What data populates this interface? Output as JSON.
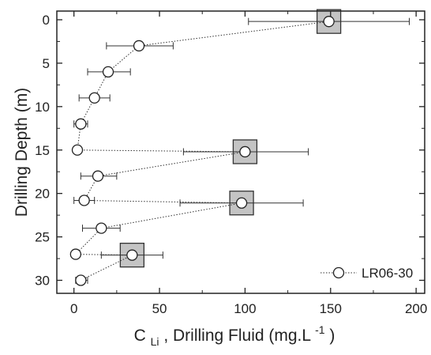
{
  "chart_data": {
    "type": "scatter",
    "xlabel": {
      "main": "C",
      "subscript": "Li",
      "rest": ", Drilling Fluid (mg.L",
      "superscript": "-1",
      "close": ")"
    },
    "ylabel": "Drilling Depth (m)",
    "xlim": [
      -10,
      205
    ],
    "ylim": [
      -1,
      31.5
    ],
    "y_inverted": true,
    "x_ticks": [
      0,
      50,
      100,
      150,
      200
    ],
    "y_ticks": [
      0,
      5,
      10,
      15,
      20,
      25,
      30
    ],
    "x_tick_labels": [
      "0",
      "50",
      "100",
      "150",
      "200"
    ],
    "y_tick_labels": [
      "0",
      "5",
      "10",
      "15",
      "20",
      "25",
      "30"
    ],
    "grid": false,
    "legend": {
      "position": "bottom-right"
    },
    "series": [
      {
        "name": "LR06-30",
        "marker": "open-circle",
        "line_style": "dotted",
        "color": "#333333",
        "points": [
          {
            "x": 149,
            "y": 0.2,
            "xerr_low": 102,
            "xerr_high": 196
          },
          {
            "x": 38,
            "y": 3,
            "xerr_low": 19,
            "xerr_high": 58
          },
          {
            "x": 20,
            "y": 6,
            "xerr_low": 8,
            "xerr_high": 33
          },
          {
            "x": 12,
            "y": 9,
            "xerr_low": 3,
            "xerr_high": 21
          },
          {
            "x": 4,
            "y": 12,
            "xerr_low": 0,
            "xerr_high": 8
          },
          {
            "x": 2,
            "y": 15,
            "xerr_low": 0,
            "xerr_high": 3
          },
          {
            "x": 100,
            "y": 15.2,
            "xerr_low": 64,
            "xerr_high": 137
          },
          {
            "x": 14,
            "y": 18,
            "xerr_low": 4,
            "xerr_high": 25
          },
          {
            "x": 6,
            "y": 20.8,
            "xerr_low": 0,
            "xerr_high": 12
          },
          {
            "x": 98,
            "y": 21.1,
            "xerr_low": 62,
            "xerr_high": 134
          },
          {
            "x": 16,
            "y": 24,
            "xerr_low": 5,
            "xerr_high": 27
          },
          {
            "x": 1,
            "y": 27,
            "xerr_low": 0,
            "xerr_high": 3
          },
          {
            "x": 34,
            "y": 27.1,
            "xerr_low": 16,
            "xerr_high": 52
          },
          {
            "x": 4,
            "y": 30,
            "xerr_low": 1,
            "xerr_high": 8
          }
        ]
      },
      {
        "marker": "filled-square",
        "color": "#c4c4c4",
        "points": [
          {
            "x": 149,
            "y": 0.2
          },
          {
            "x": 100,
            "y": 15.2
          },
          {
            "x": 98,
            "y": 21.1
          },
          {
            "x": 34,
            "y": 27.1
          }
        ]
      }
    ]
  }
}
